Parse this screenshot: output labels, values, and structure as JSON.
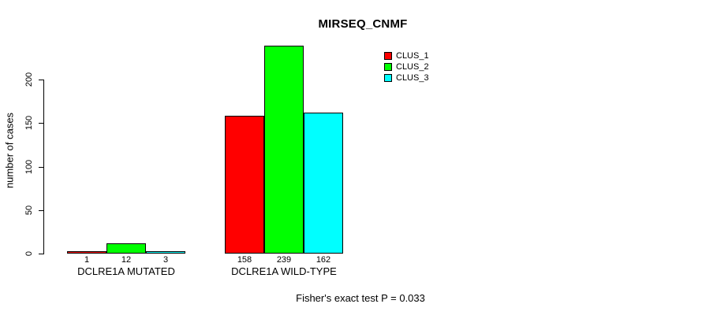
{
  "title": "MIRSEQ_CNMF",
  "footnote": "Fisher's exact test P = 0.033",
  "colors": {
    "background": "#ffffff",
    "axis": "#000000",
    "bar_border": "#000000",
    "clus_1": "#ff0000",
    "clus_2": "#00ff00",
    "clus_3": "#00ffff"
  },
  "chart_data": {
    "type": "bar",
    "title": "MIRSEQ_CNMF",
    "xlabel": "",
    "ylabel": "number of cases",
    "categories": [
      "DCLRE1A MUTATED",
      "DCLRE1A WILD-TYPE"
    ],
    "series": [
      {
        "name": "CLUS_1",
        "color": "#ff0000",
        "values": [
          1,
          158
        ]
      },
      {
        "name": "CLUS_2",
        "color": "#00ff00",
        "values": [
          12,
          239
        ]
      },
      {
        "name": "CLUS_3",
        "color": "#00ffff",
        "values": [
          3,
          162
        ]
      }
    ],
    "yticks": [
      0,
      50,
      100,
      150,
      200
    ],
    "ylim": [
      0,
      244
    ],
    "grid": false,
    "legend_position": "upper-center-right",
    "legend_entries": [
      "CLUS_1",
      "CLUS_2",
      "CLUS_3"
    ],
    "bar_value_labels": [
      [
        1,
        12,
        3
      ],
      [
        158,
        239,
        162
      ]
    ],
    "annotation": "Fisher's exact test P = 0.033"
  }
}
